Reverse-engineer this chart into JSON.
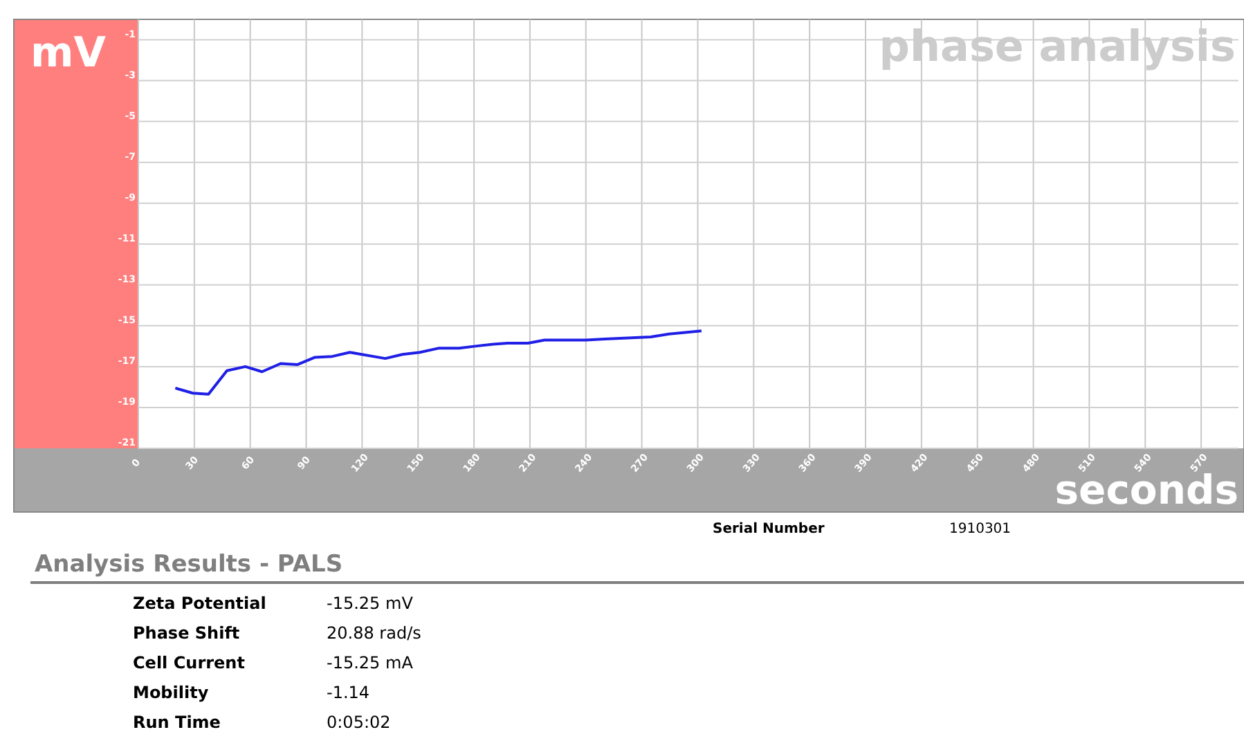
{
  "chart_data": {
    "type": "line",
    "title": "phase analysis",
    "xlabel": "seconds",
    "ylabel": "mV",
    "x": [
      19.8,
      29.2,
      37.6,
      47.5,
      57.4,
      66.3,
      76.3,
      85.4,
      94.5,
      104,
      113.4,
      132.4,
      141.6,
      151,
      160.9,
      172,
      180.7,
      190.3,
      198,
      209,
      217.8,
      227.7,
      240,
      250,
      262.4,
      274.8,
      284.6,
      302
    ],
    "series": [
      {
        "color": "#1f1fe6",
        "values": [
          -18.05,
          -18.3,
          -18.35,
          -17.2,
          -17.0,
          -17.25,
          -16.85,
          -16.9,
          -16.55,
          -16.5,
          -16.3,
          -16.6,
          -16.4,
          -16.3,
          -16.1,
          -16.1,
          -16.0,
          -15.9,
          -15.85,
          -15.85,
          -15.7,
          -15.7,
          -15.7,
          -15.65,
          -15.6,
          -15.55,
          -15.4,
          -15.25
        ]
      }
    ],
    "xlim": [
      0,
      590
    ],
    "xticks": [
      0,
      30,
      60,
      90,
      120,
      150,
      180,
      210,
      240,
      270,
      300,
      330,
      360,
      390,
      420,
      450,
      480,
      510,
      540,
      570
    ],
    "ylim": [
      -21,
      0
    ],
    "yticks": [
      -1,
      -3,
      -5,
      -7,
      -9,
      -11,
      -13,
      -15,
      -17,
      -19,
      -21
    ],
    "grid": true,
    "marker": "none",
    "line_style": "solid",
    "annotations": [
      "Serial Number",
      "1910301",
      "Analysis Results - PALS",
      "Zeta Potential",
      "-15.25 mV",
      "Phase Shift",
      "20.88 rad/s",
      "Cell Current",
      "-15.25 mA",
      "Mobility",
      "-1.14",
      "Run Time",
      "0:05:02"
    ]
  }
}
